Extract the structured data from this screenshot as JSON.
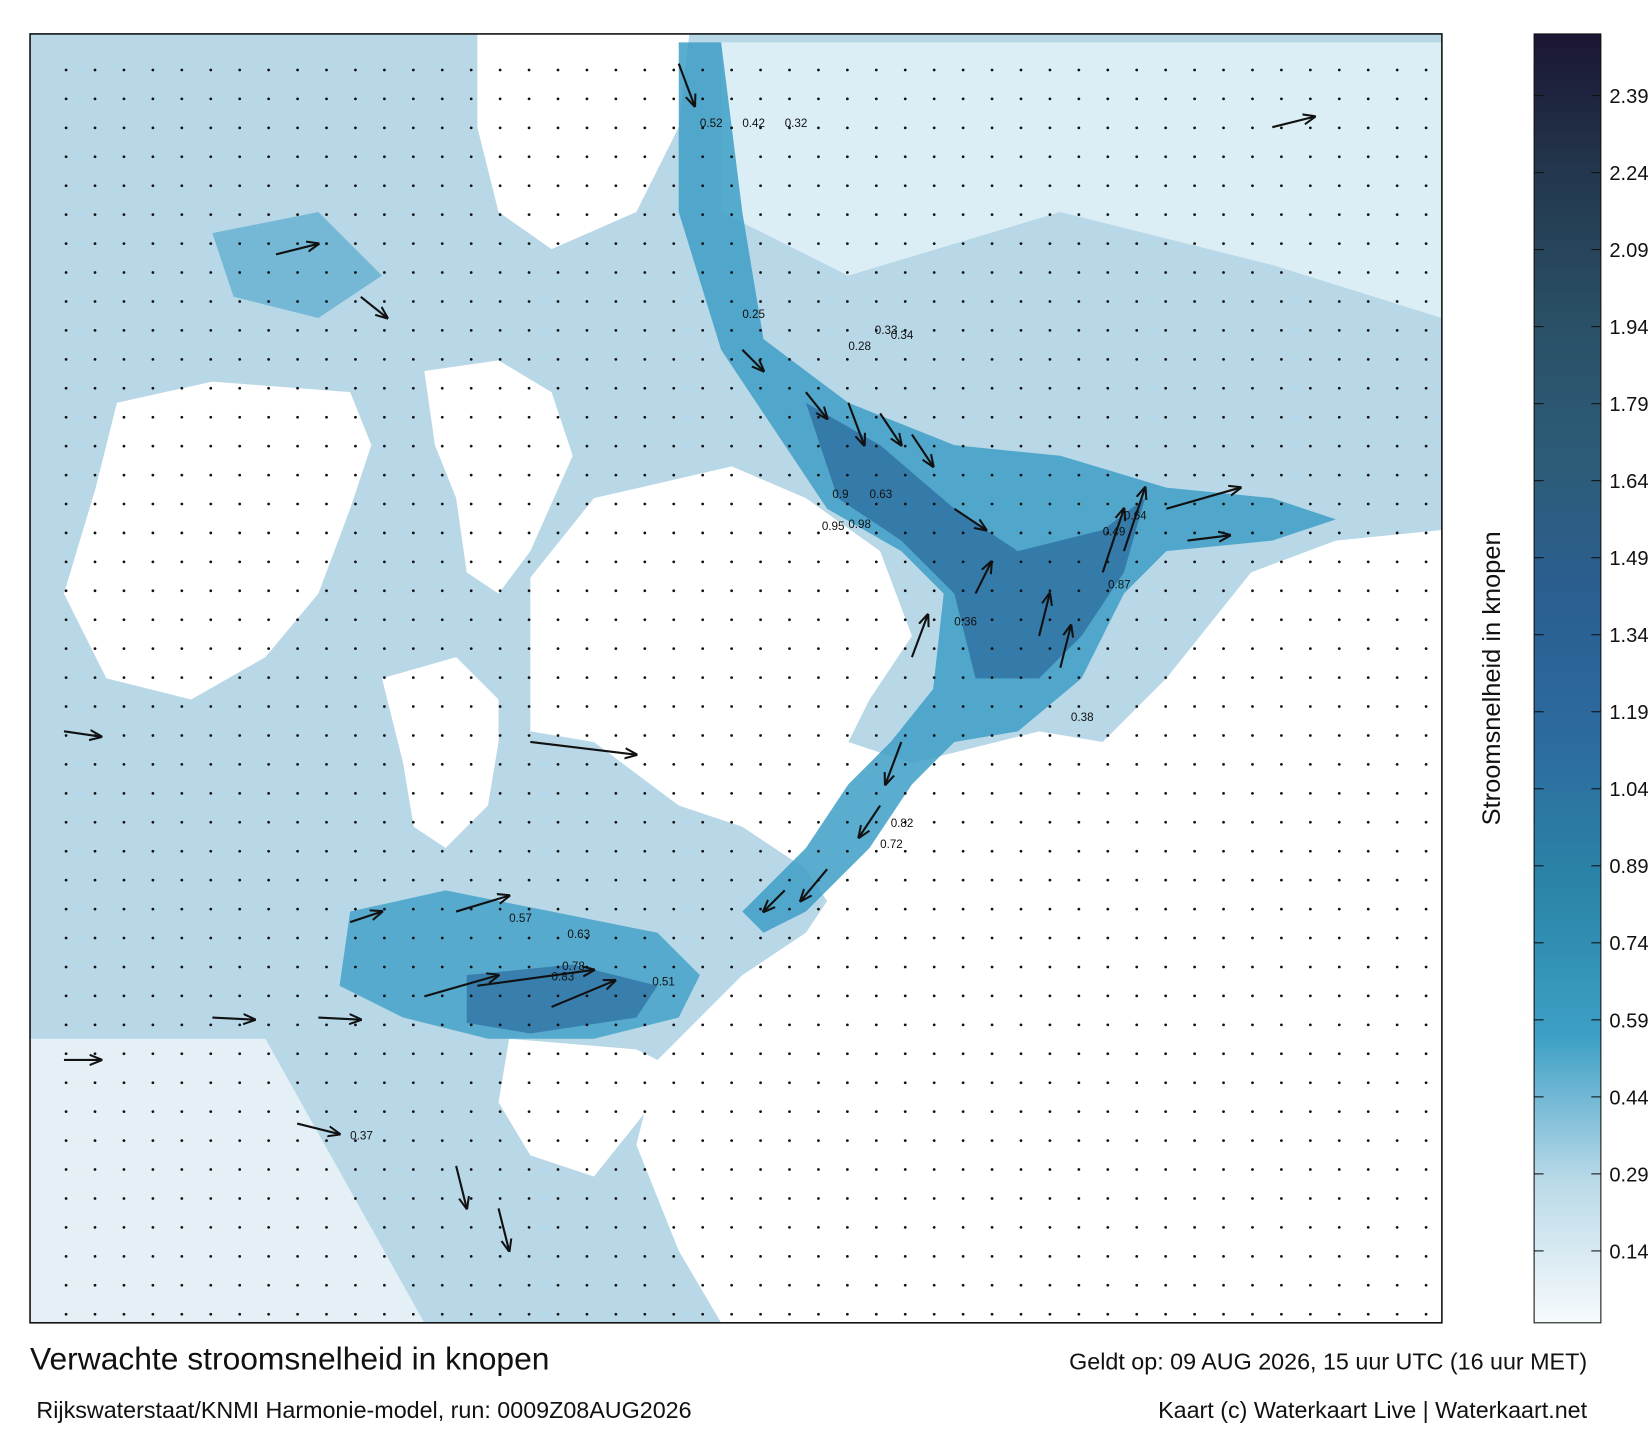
{
  "title": "Verwachte stroomsnelheid in knopen",
  "subtitle": "Rijkswaterstaat/KNMI Harmonie-model, run: 0009Z08AUG2026",
  "valid": "Geldt op: 09 AUG 2026, 15 uur UTC (16 uur MET)",
  "credit": "Kaart (c) Waterkaart Live | Waterkaart.net",
  "colorbar": {
    "label": "Stroomsnelheid in knopen",
    "lim": [
      0,
      2.51
    ],
    "ticks": [
      0.14,
      0.29,
      0.44,
      0.59,
      0.74,
      0.89,
      1.04,
      1.19,
      1.34,
      1.49,
      1.64,
      1.79,
      1.94,
      2.09,
      2.24,
      2.39
    ],
    "colors": [
      "#f6fafc",
      "#b9d9e8",
      "#3d9fc6",
      "#2b86a9",
      "#2c6c9f",
      "#2b5f93",
      "#2c5c78",
      "#2a5066",
      "#23384e",
      "#1b1633"
    ]
  },
  "speed_labels": [
    0.52,
    0.42,
    0.32,
    0.63,
    0.95,
    0.98,
    0.87,
    0.82,
    0.9,
    0.72,
    0.57,
    0.63,
    0.78,
    0.83,
    0.51,
    0.37,
    0.34,
    0.33,
    0.28,
    0.25,
    0.36,
    0.38,
    0.64,
    0.49
  ]
}
